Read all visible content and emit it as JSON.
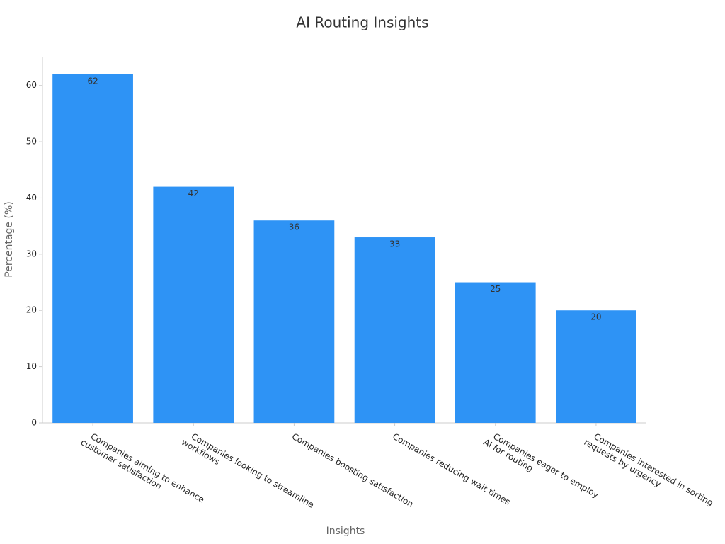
{
  "chart_data": {
    "type": "bar",
    "title": "AI Routing Insights",
    "x_label": "Insights",
    "y_label": "Percentage (%)",
    "categories": [
      "Companies aiming to enhance\ncustomer satisfaction",
      "Companies looking to streamline\nworkflows",
      "Companies boosting satisfaction",
      "Companies reducing wait times",
      "Companies eager to employ\nAI for routing",
      "Companies interested in sorting\nrequests by urgency"
    ],
    "values": [
      62,
      42,
      36,
      33,
      25,
      20
    ],
    "color": "#2e93f5",
    "ylim": [
      0,
      65
    ],
    "yticks": [
      0,
      10,
      20,
      30,
      40,
      50,
      60
    ],
    "grid": false
  }
}
